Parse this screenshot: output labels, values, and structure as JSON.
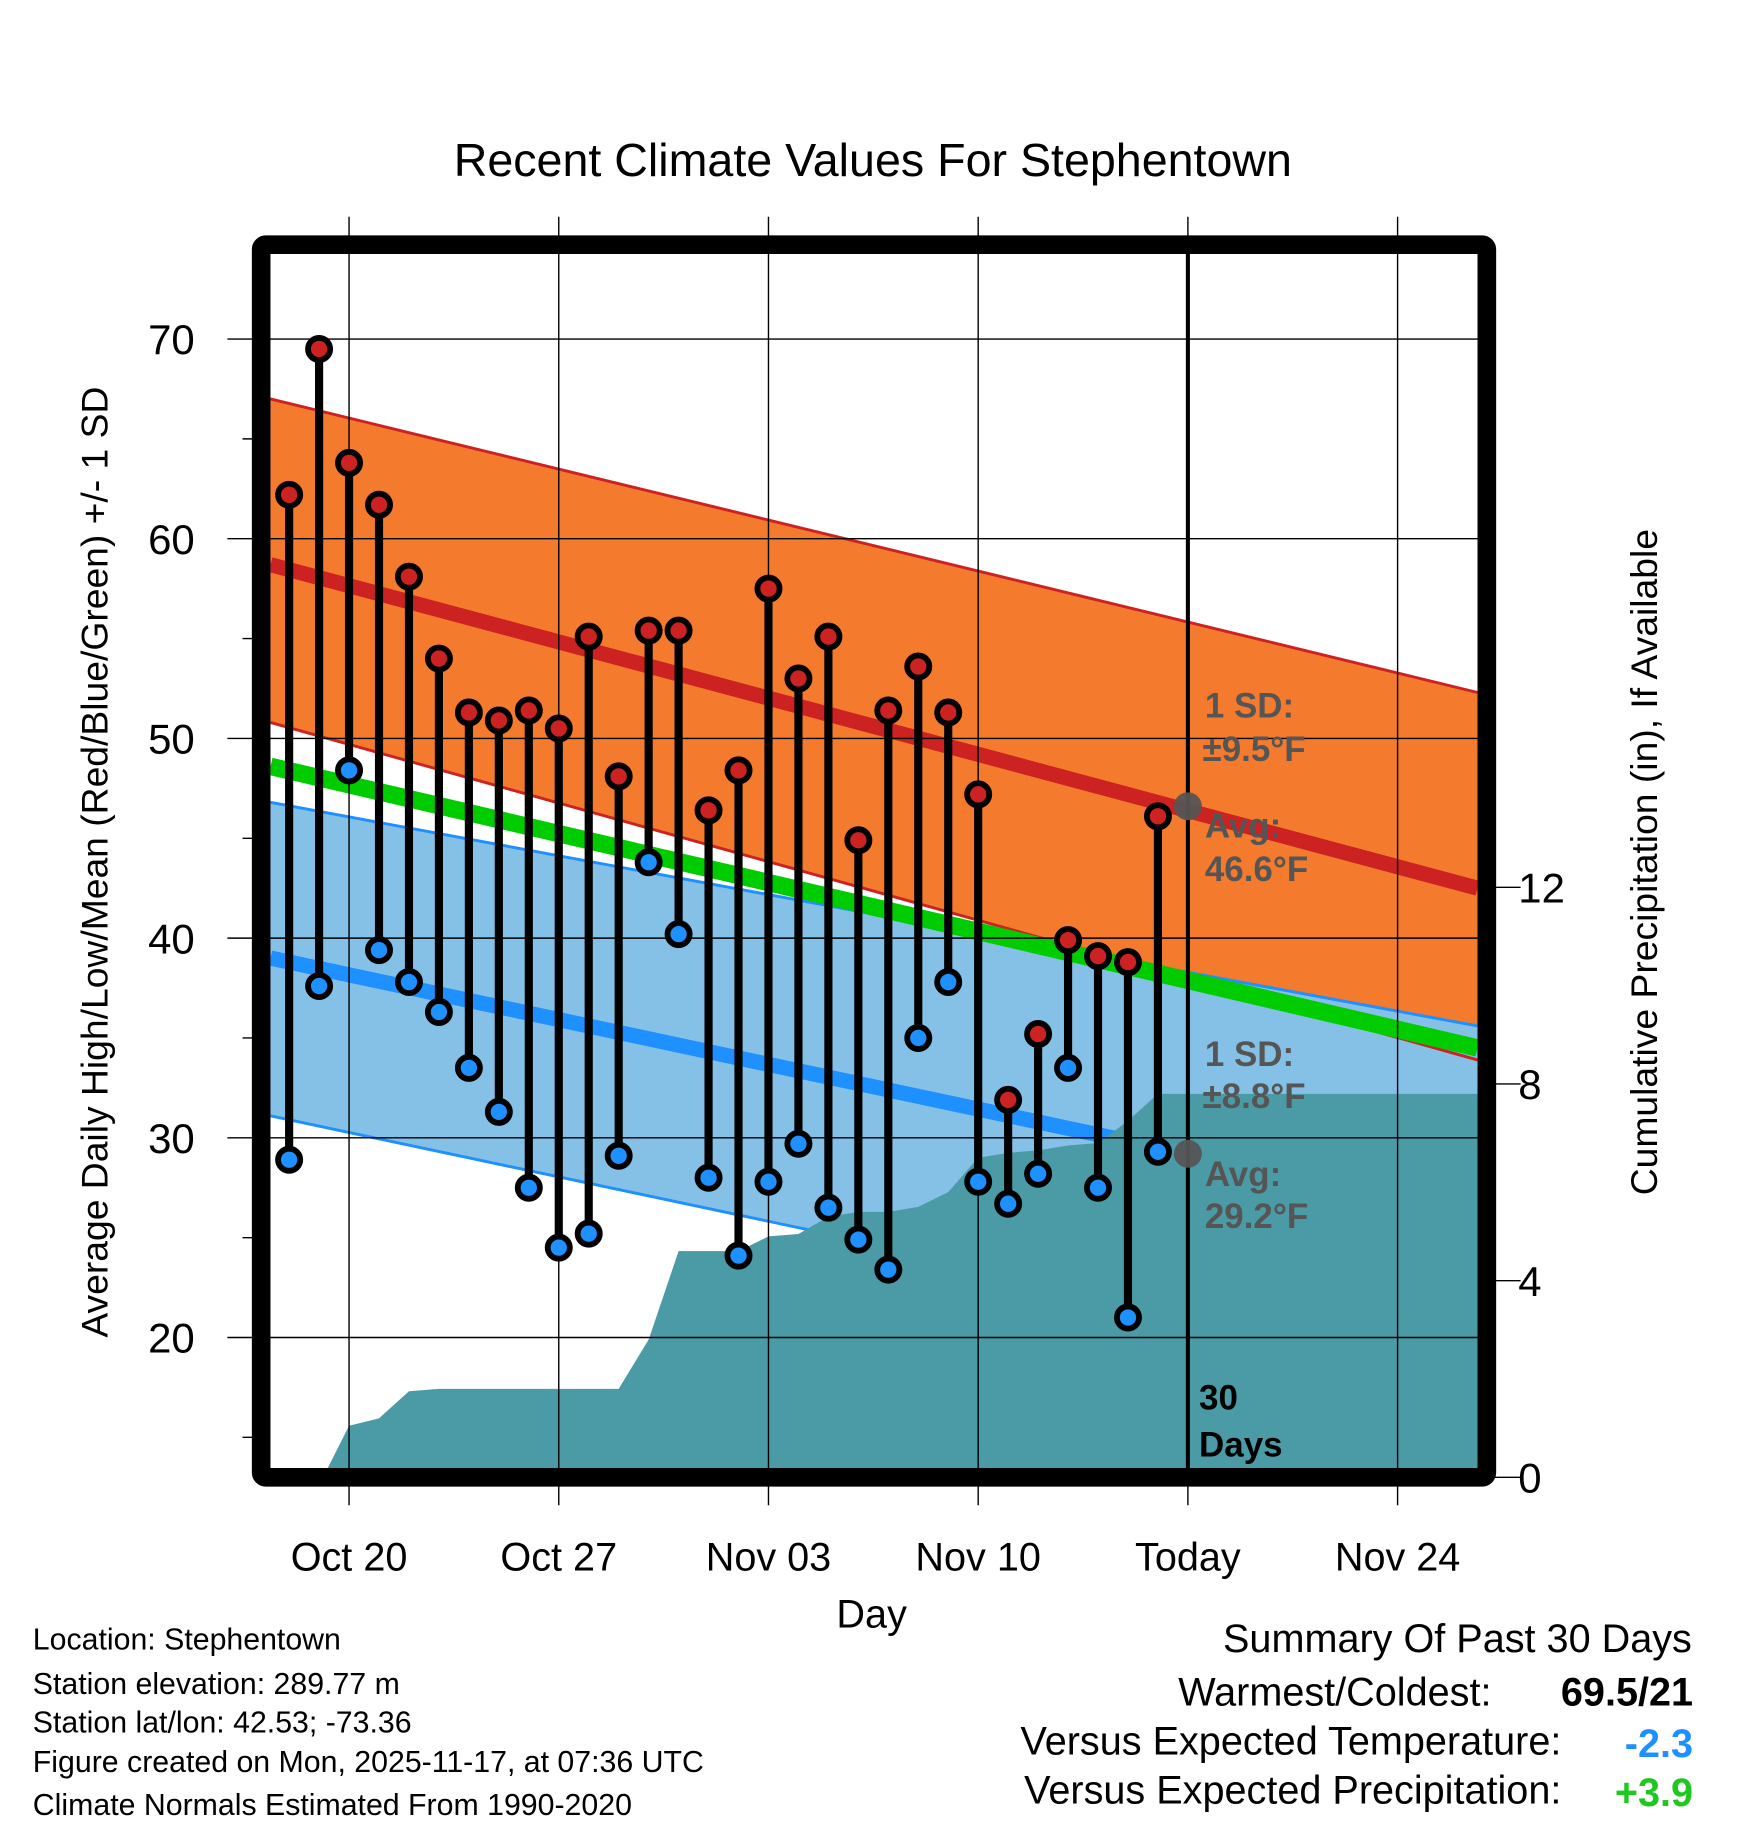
{
  "chart_data": {
    "type": "line",
    "title": "Recent Climate Values For Stephentown",
    "xlabel": "Day",
    "ylabel": "Average Daily High/Low/Mean (Red/Blue/Green) +/- 1 SD",
    "y2label": "Cumulative Precipitation (in), If Available",
    "ylim": [
      13.4,
      73.9
    ],
    "y2lim": [
      0,
      14.6
    ],
    "yticks": [
      "20",
      "30",
      "40",
      "50",
      "60",
      "70"
    ],
    "y2ticks": [
      "0",
      "4",
      "8",
      "12"
    ],
    "xticks": [
      {
        "day": 2,
        "label": "Oct 20"
      },
      {
        "day": 9,
        "label": "Oct 27"
      },
      {
        "day": 16,
        "label": "Nov 03"
      },
      {
        "day": 23,
        "label": "Nov 10"
      },
      {
        "day": 30,
        "label": "Today"
      },
      {
        "day": 37,
        "label": "Nov 24"
      }
    ],
    "x_day_origin": "Oct 18",
    "xlim_days": [
      -0.62,
      39.7
    ],
    "dates": [
      "Oct 18",
      "Oct 19",
      "Oct 20",
      "Oct 21",
      "Oct 22",
      "Oct 23",
      "Oct 24",
      "Oct 25",
      "Oct 26",
      "Oct 27",
      "Oct 28",
      "Oct 29",
      "Oct 30",
      "Oct 31",
      "Nov 01",
      "Nov 02",
      "Nov 03",
      "Nov 04",
      "Nov 05",
      "Nov 06",
      "Nov 07",
      "Nov 08",
      "Nov 09",
      "Nov 10",
      "Nov 11",
      "Nov 12",
      "Nov 13",
      "Nov 14",
      "Nov 15",
      "Nov 16"
    ],
    "highs": [
      62.2,
      69.5,
      63.8,
      61.7,
      58.1,
      54.0,
      51.3,
      50.9,
      51.4,
      50.5,
      55.1,
      48.1,
      55.4,
      55.4,
      46.4,
      48.4,
      57.5,
      53.0,
      55.1,
      44.9,
      51.4,
      53.6,
      51.3,
      47.2,
      31.9,
      35.2,
      39.9,
      39.1,
      38.8,
      46.1
    ],
    "lows": [
      28.9,
      37.6,
      48.4,
      39.4,
      37.8,
      36.3,
      33.5,
      31.3,
      27.5,
      24.5,
      25.2,
      29.1,
      43.8,
      40.2,
      28.0,
      24.1,
      27.8,
      29.7,
      26.5,
      24.9,
      23.4,
      35.0,
      37.8,
      27.8,
      26.7,
      28.2,
      33.5,
      27.5,
      21.0,
      29.3
    ],
    "cumulative_precip": [
      0,
      0,
      1.05,
      1.2,
      1.75,
      1.8,
      1.8,
      1.8,
      1.8,
      1.8,
      1.8,
      1.8,
      2.8,
      4.6,
      4.6,
      4.6,
      4.9,
      4.95,
      5.3,
      5.4,
      5.4,
      5.5,
      5.8,
      6.5,
      6.6,
      6.65,
      6.75,
      6.8,
      7.25,
      7.8
    ],
    "normals": {
      "high_avg": [
        58.7,
        42.5
      ],
      "high_upper_sd": [
        67.0,
        52.3
      ],
      "high_lower_sd": [
        50.8,
        33.9
      ],
      "low_avg": [
        39.0,
        26.1
      ],
      "low_upper_sd": [
        46.8,
        35.6
      ],
      "low_lower_sd": [
        31.1,
        18.3
      ],
      "mean": [
        48.6,
        34.5
      ],
      "today_high_avg": 46.6,
      "today_low_avg": 29.2
    },
    "annotations": {
      "high_sd_label": "1 SD:",
      "high_sd_value": "±9.5°F",
      "high_avg_label": "Avg:",
      "high_avg_value": "46.6°F",
      "low_sd_label": "1 SD:",
      "low_sd_value": "±8.8°F",
      "low_avg_label": "Avg:",
      "low_avg_value": "29.2°F",
      "window_num": "30",
      "window_unit": "Days"
    },
    "colors": {
      "high_band": "#f47a2e",
      "high_line": "#cc2222",
      "low_band": "#85c1e6",
      "low_line": "#1e90ff",
      "mean_line": "#00cc00",
      "precip": "#4a9ba5"
    }
  },
  "footer": {
    "location": "Location: Stephentown",
    "elevation": "Station elevation: 289.77 m",
    "latlon": "Station lat/lon: 42.53; -73.36",
    "created": "Figure created on Mon, 2025-11-17, at 07:36 UTC",
    "normals": "Climate Normals Estimated From 1990-2020"
  },
  "summary": {
    "title": "Summary Of Past 30 Days",
    "warmest_label": "Warmest/Coldest:",
    "warmest_value": "69.5/21",
    "temp_label": "Versus Expected Temperature:",
    "temp_value": "-2.3",
    "temp_color": "#1e90ff",
    "precip_label": "Versus Expected Precipitation:",
    "precip_value": "+3.9",
    "precip_color": "#1ec81e"
  }
}
